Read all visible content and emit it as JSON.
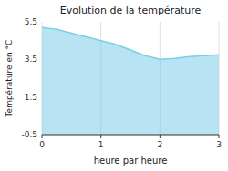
{
  "chart_data": {
    "type": "area",
    "title": "Evolution de la température",
    "x_label": "heure par heure",
    "y_label": "Température en °C",
    "x": [
      0,
      0.25,
      0.5,
      0.75,
      1.0,
      1.25,
      1.5,
      1.75,
      2.0,
      2.25,
      2.5,
      2.75,
      3.0
    ],
    "values": [
      5.2,
      5.1,
      4.9,
      4.7,
      4.5,
      4.3,
      4.0,
      3.7,
      3.5,
      3.55,
      3.65,
      3.7,
      3.75
    ],
    "color": "#7dcce8",
    "xlim": [
      0,
      3
    ],
    "xticks": [
      0,
      1,
      2,
      3
    ],
    "ylim": [
      -0.5,
      5.5
    ],
    "yticks": [
      -0.5,
      1.5,
      3.5,
      5.5
    ],
    "grid": true
  }
}
